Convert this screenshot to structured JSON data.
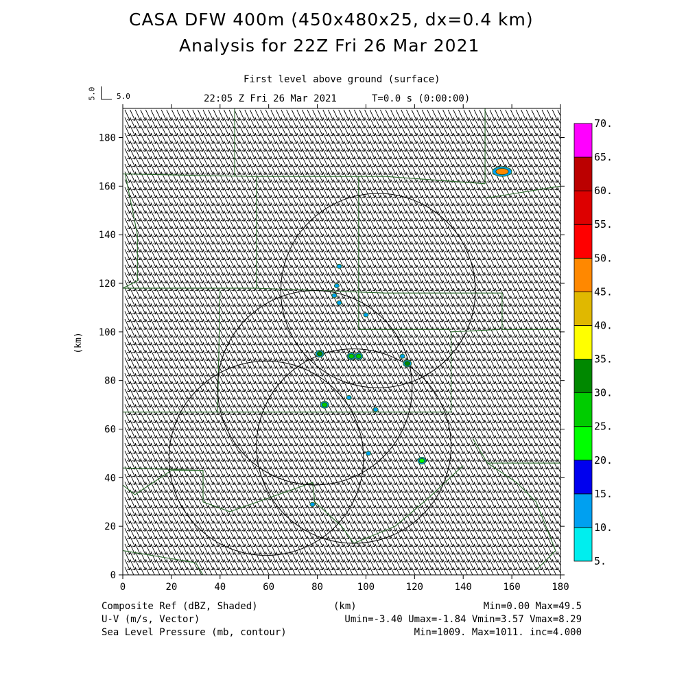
{
  "header": {
    "title_line1": "CASA DFW 400m (450x480x25, dx=0.4 km)",
    "title_line2": "Analysis for 22Z Fri 26 Mar 2021",
    "level": "First level above ground (surface)",
    "valid_time": "22:05 Z Fri 26 Mar 2021",
    "model_time": "T=0.0 s (0:00:00)",
    "vector_ref_vertical": "5.0",
    "vector_ref_horizontal": "5.0"
  },
  "footer": {
    "field1": "Composite Ref (dBZ, Shaded)",
    "field2": "U-V (m/s, Vector)",
    "field3": "Sea Level Pressure (mb, contour)",
    "xunit": "(km)",
    "stats1": "Min=0.00 Max=49.5",
    "stats2": "Umin=-3.40 Umax=-1.84 Vmin=3.57 Vmax=8.29",
    "stats3": "Min=1009. Max=1011. inc=4.000"
  },
  "chart_data": {
    "type": "heatmap",
    "xlabel": "",
    "ylabel": "(km)",
    "xlim": [
      0,
      180
    ],
    "ylim": [
      0,
      192
    ],
    "xticks": [
      0,
      20,
      40,
      60,
      80,
      100,
      120,
      140,
      160,
      180
    ],
    "yticks": [
      0,
      20,
      40,
      60,
      80,
      100,
      120,
      140,
      160,
      180
    ],
    "colorbar": {
      "labels": [
        "5.",
        "10.",
        "15.",
        "20.",
        "25.",
        "30.",
        "35.",
        "40.",
        "45.",
        "50.",
        "55.",
        "60.",
        "65.",
        "70."
      ],
      "colors": [
        "#00eeee",
        "#00a0f0",
        "#0000ee",
        "#00ff00",
        "#00cc00",
        "#008800",
        "#ffff00",
        "#e0b800",
        "#ff8800",
        "#ff0000",
        "#dd0000",
        "#bb0000",
        "#ff00ff"
      ]
    },
    "wind": {
      "u_range": [
        -3.4,
        -1.84
      ],
      "v_range": [
        3.57,
        8.29
      ]
    },
    "radar_rings": [
      {
        "cx": 105,
        "cy": 117,
        "r": 40
      },
      {
        "cx": 79,
        "cy": 77,
        "r": 40
      },
      {
        "cx": 59,
        "cy": 48,
        "r": 40
      },
      {
        "cx": 95,
        "cy": 53,
        "r": 40
      }
    ],
    "reflectivity_cells": [
      {
        "x": 156,
        "y": 166,
        "dbz": 45
      },
      {
        "x": 81,
        "y": 91,
        "dbz": 30
      },
      {
        "x": 94,
        "y": 90,
        "dbz": 25
      },
      {
        "x": 97,
        "y": 90,
        "dbz": 25
      },
      {
        "x": 115,
        "y": 90,
        "dbz": 15
      },
      {
        "x": 117,
        "y": 87,
        "dbz": 30
      },
      {
        "x": 83,
        "y": 70,
        "dbz": 25
      },
      {
        "x": 123,
        "y": 47,
        "dbz": 20
      },
      {
        "x": 88,
        "y": 119,
        "dbz": 10
      },
      {
        "x": 87,
        "y": 115,
        "dbz": 10
      },
      {
        "x": 89,
        "y": 127,
        "dbz": 10
      },
      {
        "x": 100,
        "y": 107,
        "dbz": 10
      },
      {
        "x": 93,
        "y": 73,
        "dbz": 10
      },
      {
        "x": 104,
        "y": 68,
        "dbz": 10
      },
      {
        "x": 101,
        "y": 50,
        "dbz": 10
      },
      {
        "x": 78,
        "y": 29,
        "dbz": 10
      },
      {
        "x": 89,
        "y": 112,
        "dbz": 10
      }
    ]
  }
}
